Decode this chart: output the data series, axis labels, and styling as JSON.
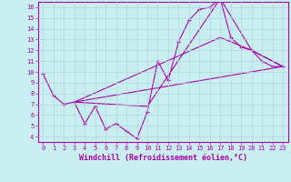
{
  "xlabel": "Windchill (Refroidissement éolien,°C)",
  "bg_color": "#c8eef0",
  "grid_color": "#b0d8dc",
  "line_color": "#aa00aa",
  "xlim": [
    -0.5,
    23.5
  ],
  "ylim": [
    3.5,
    16.5
  ],
  "xticks": [
    0,
    1,
    2,
    3,
    4,
    5,
    6,
    7,
    8,
    9,
    10,
    11,
    12,
    13,
    14,
    15,
    16,
    17,
    18,
    19,
    20,
    21,
    22,
    23
  ],
  "yticks": [
    4,
    5,
    6,
    7,
    8,
    9,
    10,
    11,
    12,
    13,
    14,
    15,
    16
  ],
  "line1_x": [
    0,
    1,
    2,
    3,
    4,
    5,
    6,
    7,
    8,
    9,
    10,
    11,
    12,
    13,
    14,
    15,
    16,
    17,
    18,
    19,
    20,
    21,
    22,
    23
  ],
  "line1_y": [
    9.8,
    7.8,
    7.0,
    7.2,
    5.2,
    6.8,
    4.7,
    5.2,
    4.5,
    3.8,
    6.3,
    11.0,
    9.2,
    12.8,
    14.8,
    15.8,
    16.0,
    16.8,
    13.2,
    12.3,
    12.0,
    11.0,
    10.5,
    10.5
  ],
  "line2_x": [
    3,
    10,
    17,
    20,
    23
  ],
  "line2_y": [
    7.2,
    6.8,
    16.8,
    12.0,
    10.5
  ],
  "line3_x": [
    3,
    23
  ],
  "line3_y": [
    7.2,
    10.5
  ],
  "line4_x": [
    3,
    17,
    20,
    23
  ],
  "line4_y": [
    7.2,
    13.2,
    12.0,
    10.5
  ],
  "markersize": 2,
  "linewidth": 0.8,
  "xlabel_fontsize": 6,
  "tick_fontsize": 5
}
